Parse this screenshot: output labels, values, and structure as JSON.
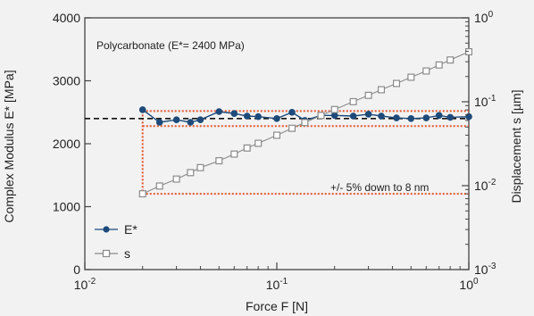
{
  "chart_data": {
    "type": "line",
    "title": "",
    "annotation_material": "Polycarbonate (E*= 2400 MPa)",
    "annotation_tolerance": "+/- 5% down to 8 nm",
    "xlabel": "Force F [N]",
    "ylabel_left": "Complex Modulus  E* [MPa]",
    "ylabel_right": "Displacement s [µm]",
    "x_scale": "log",
    "xlim": [
      0.01,
      1
    ],
    "ylim_left": [
      0,
      4000
    ],
    "y_right_scale": "log",
    "ylim_right": [
      0.001,
      1
    ],
    "x_ticks": [
      {
        "value": 0.01,
        "label": "10",
        "exp": "-2"
      },
      {
        "value": 0.1,
        "label": "10",
        "exp": "-1"
      },
      {
        "value": 1,
        "label": "10",
        "exp": "0"
      }
    ],
    "y_left_ticks": [
      0,
      1000,
      2000,
      3000,
      4000
    ],
    "y_right_ticks": [
      {
        "value": 0.001,
        "label": "10",
        "exp": "-3"
      },
      {
        "value": 0.01,
        "label": "10",
        "exp": "-2"
      },
      {
        "value": 0.1,
        "label": "10",
        "exp": "-1"
      },
      {
        "value": 1,
        "label": "10",
        "exp": "0"
      }
    ],
    "reference_line": 2400,
    "tolerance_band": [
      2280,
      2520
    ],
    "series": [
      {
        "name": "E*",
        "axis": "left",
        "color": "#1d4a7a",
        "marker": "filled-circle",
        "x": [
          0.02,
          0.0245,
          0.03,
          0.0355,
          0.04,
          0.05,
          0.06,
          0.07,
          0.08,
          0.1,
          0.12,
          0.14,
          0.17,
          0.2,
          0.25,
          0.3,
          0.35,
          0.42,
          0.5,
          0.6,
          0.7,
          0.8,
          1.0
        ],
        "values": [
          2540,
          2340,
          2380,
          2340,
          2380,
          2510,
          2480,
          2440,
          2430,
          2400,
          2500,
          2370,
          2450,
          2450,
          2440,
          2470,
          2440,
          2410,
          2400,
          2410,
          2450,
          2420,
          2430
        ]
      },
      {
        "name": "s",
        "axis": "right",
        "color": "#8a8a8a",
        "marker": "open-square",
        "x": [
          0.02,
          0.0245,
          0.03,
          0.0355,
          0.04,
          0.05,
          0.06,
          0.07,
          0.08,
          0.1,
          0.12,
          0.14,
          0.17,
          0.2,
          0.25,
          0.3,
          0.35,
          0.42,
          0.5,
          0.6,
          0.7,
          0.8,
          1.0
        ],
        "values": [
          0.008,
          0.0099,
          0.012,
          0.0143,
          0.0164,
          0.0198,
          0.0238,
          0.0281,
          0.032,
          0.0399,
          0.0483,
          0.0565,
          0.0686,
          0.0808,
          0.1003,
          0.1192,
          0.1393,
          0.1653,
          0.196,
          0.2328,
          0.2746,
          0.3148,
          0.3938
        ]
      }
    ],
    "legend": {
      "placement": "bottom-left"
    },
    "colors": {
      "band": "#e2542c",
      "reference": "#111111",
      "frame": "#444444"
    }
  }
}
